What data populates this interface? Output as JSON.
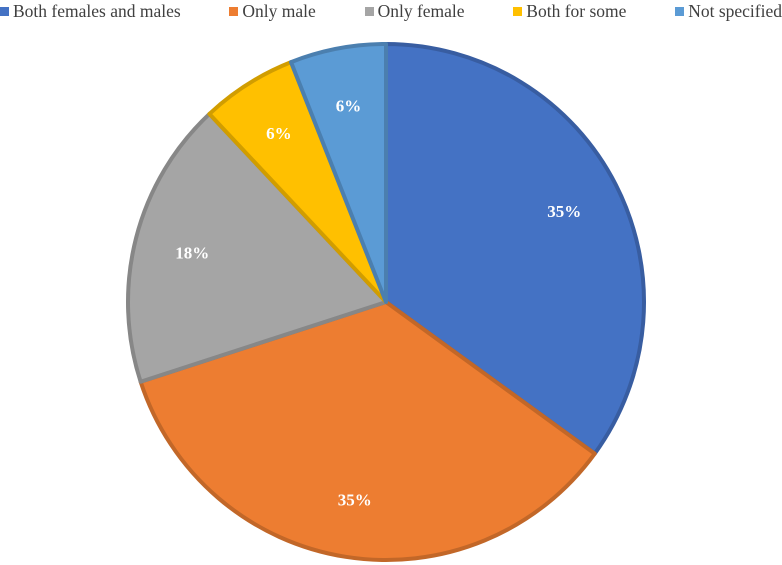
{
  "chart_data": {
    "type": "pie",
    "categories": [
      "Both females and males",
      "Only male",
      "Only female",
      "Both for some",
      "Not specified"
    ],
    "values": [
      35,
      35,
      18,
      6,
      6
    ],
    "labels": [
      "35%",
      "35%",
      "18%",
      "6%",
      "6%"
    ],
    "colors": [
      "#4472C4",
      "#ED7D31",
      "#A5A5A5",
      "#FFC000",
      "#5B9BD5"
    ],
    "legend_position": "top"
  }
}
